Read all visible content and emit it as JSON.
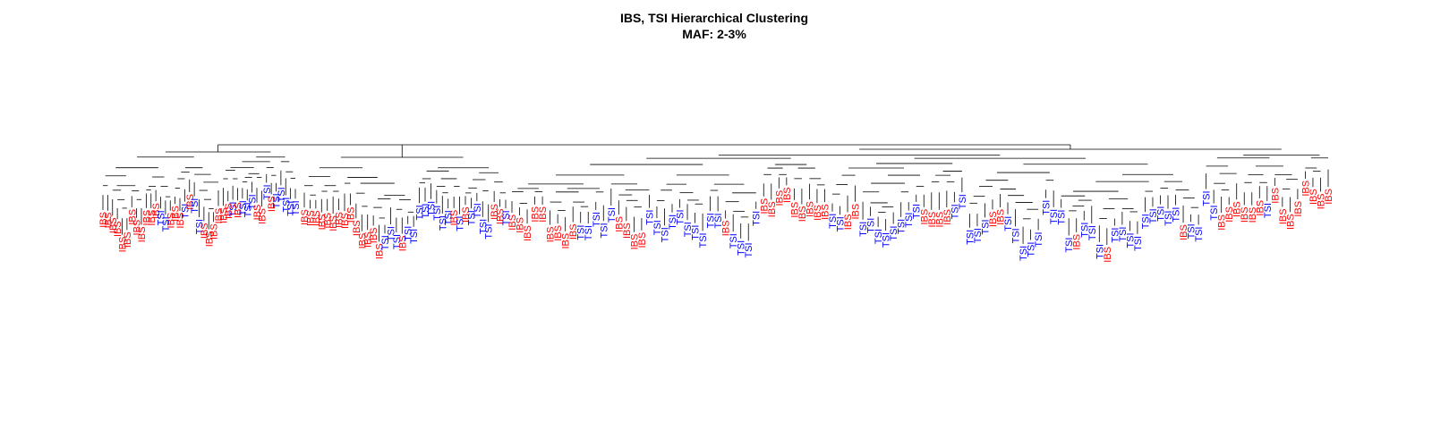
{
  "chart_data": {
    "type": "dendrogram",
    "title": "IBS, TSI Hierarchical Clustering",
    "subtitle": "MAF: 2-3%",
    "colors": {
      "IBS": "#ff0000",
      "TSI": "#0000ff"
    },
    "clusters": [
      {
        "labels": [
          "IBS",
          "IBS",
          "IBS",
          "IBS",
          "IBS",
          "IBS",
          "IBS",
          "IBS",
          "IBS",
          "IBS",
          "IBS",
          "IBS",
          "TSI",
          "TSI",
          "IBS",
          "IBS",
          "IBS",
          "TSI",
          "IBS",
          "TSI",
          "TSI",
          "IBS",
          "IBS",
          "IBS",
          "IBS",
          "IBS",
          "IBS",
          "TSI",
          "IBS",
          "TSI",
          "TSI",
          "TSI",
          "IBS",
          "IBS",
          "TSI",
          "IBS",
          "TSI",
          "TSI",
          "TSI",
          "TSI",
          "TSI"
        ]
      },
      {
        "labels": [
          "IBS",
          "IBS",
          "IBS",
          "IBS",
          "IBS",
          "IBS",
          "IBS",
          "IBS",
          "IBS",
          "IBS",
          "IBS",
          "IBS",
          "IBS",
          "IBS",
          "TSI",
          "TSI",
          "TSI",
          "IBS",
          "TSI",
          "TSI",
          "TSI",
          "TSI",
          "TSI",
          "TSI",
          "TSI",
          "TSI",
          "IBS",
          "TSI",
          "IBS",
          "TSI",
          "TSI",
          "TSI",
          "TSI",
          "IBS",
          "IBS",
          "TSI"
        ]
      },
      {
        "labels": [
          "IBS",
          "IBS",
          "IBS",
          "IBS",
          "IBS",
          "IBS",
          "IBS",
          "IBS",
          "IBS",
          "TSI",
          "TSI",
          "TSI",
          "TSI",
          "TSI",
          "IBS",
          "IBS",
          "IBS",
          "IBS",
          "TSI",
          "TSI",
          "TSI",
          "TSI",
          "TSI",
          "TSI",
          "TSI",
          "TSI",
          "TSI",
          "TSI",
          "IBS",
          "TSI",
          "TSI",
          "TSI",
          "TSI",
          "IBS",
          "IBS",
          "IBS",
          "IBS",
          "IBS",
          "IBS",
          "IBS",
          "IBS",
          "IBS",
          "TSI",
          "TSI",
          "IBS",
          "IBS",
          "TSI",
          "TSI",
          "TSI",
          "TSI",
          "TSI",
          "TSI",
          "TSI",
          "TSI",
          "IBS",
          "IBS",
          "IBS",
          "IBS",
          "TSI",
          "TSI",
          "TSI",
          "TSI",
          "TSI",
          "IBS",
          "IBS",
          "TSI",
          "TSI",
          "TSI",
          "TSI",
          "TSI",
          "TSI",
          "TSI",
          "TSI",
          "TSI",
          "IBS",
          "TSI",
          "TSI",
          "TSI",
          "IBS",
          "TSI",
          "TSI",
          "TSI",
          "TSI",
          "TSI",
          "TSI",
          "TSI",
          "TSI",
          "TSI",
          "IBS",
          "TSI",
          "TSI",
          "TSI",
          "TSI",
          "IBS",
          "IBS",
          "IBS",
          "IBS",
          "IBS",
          "IBS",
          "TSI",
          "IBS",
          "IBS",
          "IBS",
          "IBS",
          "IBS",
          "IBS",
          "IBS",
          "IBS"
        ]
      }
    ]
  }
}
